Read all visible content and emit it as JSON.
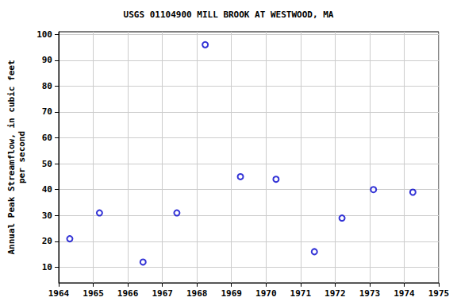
{
  "chart_data": {
    "type": "scatter",
    "title": "USGS 01104900 MILL BROOK AT WESTWOOD, MA",
    "y_label": "Annual Peak Streamflow, in cubic feet\nper second",
    "x": [
      1964.32,
      1965.18,
      1966.44,
      1967.42,
      1968.24,
      1969.26,
      1970.29,
      1971.4,
      1972.2,
      1973.11,
      1974.25
    ],
    "values": [
      21,
      31,
      12,
      31,
      96,
      45,
      44,
      16,
      29,
      40,
      39
    ],
    "color": "#0000cc",
    "marker": "open_circle",
    "xlim": [
      1964,
      1975
    ],
    "xticks": [
      1964,
      1965,
      1966,
      1967,
      1968,
      1969,
      1970,
      1971,
      1972,
      1973,
      1974,
      1975
    ],
    "ylim": [
      4,
      101
    ],
    "yticks": [
      10,
      20,
      30,
      40,
      50,
      60,
      70,
      80,
      90,
      100
    ],
    "grid": true
  }
}
